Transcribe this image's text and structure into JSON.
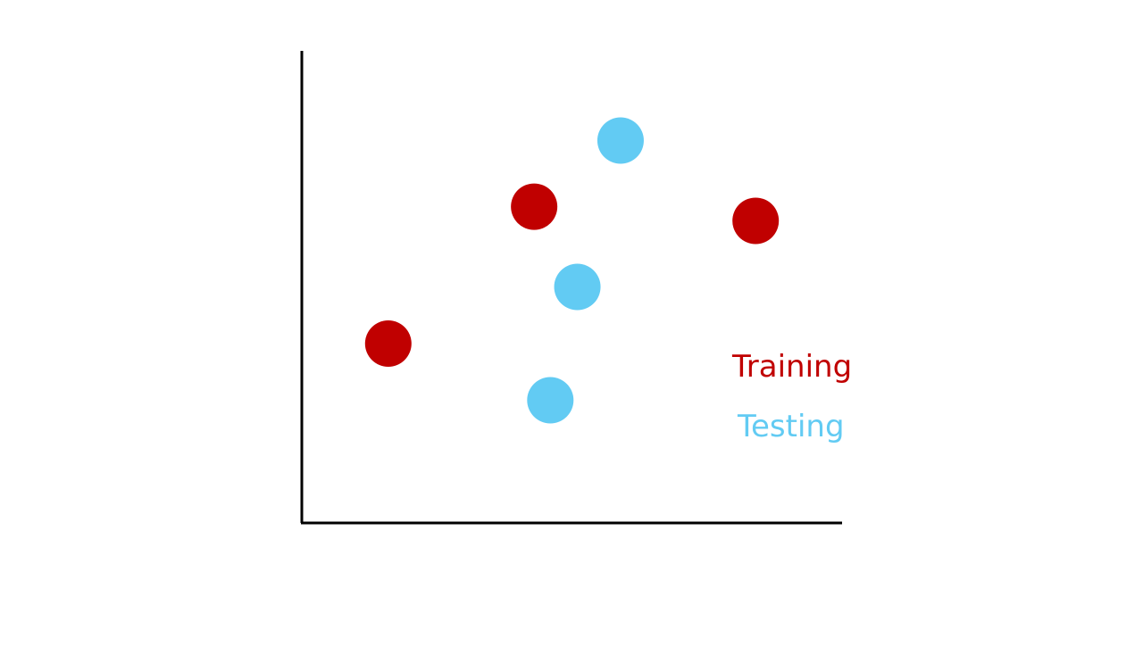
{
  "chart_data": {
    "type": "scatter",
    "title": "",
    "xlabel": "",
    "ylabel": "",
    "xlim": [
      0,
      10
    ],
    "ylim": [
      0,
      10
    ],
    "grid": false,
    "axis_ticks": false,
    "legend_placement": "right",
    "series": [
      {
        "name": "Training",
        "color": "#c00000",
        "points": [
          {
            "x": 1.6,
            "y": 3.8
          },
          {
            "x": 4.3,
            "y": 6.7
          },
          {
            "x": 8.4,
            "y": 6.4
          }
        ]
      },
      {
        "name": "Testing",
        "color": "#62cbf3",
        "points": [
          {
            "x": 5.9,
            "y": 8.1
          },
          {
            "x": 5.1,
            "y": 5.0
          },
          {
            "x": 4.6,
            "y": 2.6
          }
        ]
      }
    ]
  }
}
